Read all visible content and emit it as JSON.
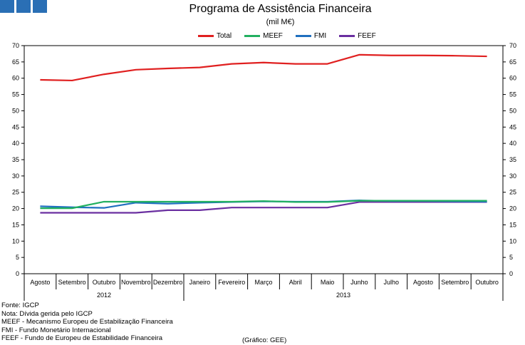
{
  "header": {
    "title": "Programa de Assistência Financeira",
    "subtitle": "(mil M€)"
  },
  "footer": {
    "notes": [
      "Fonte: IGCP",
      "Nota: Dívida gerida pelo IGCP",
      "MEEF - Mecanismo Europeu de Estabilização Financeira",
      "FMI - Fundo Monetário Internacional",
      "FEEF - Fundo de Europeu de Estabilidade Financeira"
    ],
    "credit": "(Gráfico: GEE)"
  },
  "chart_data": {
    "type": "line",
    "title": "Programa de Assistência Financeira",
    "subtitle": "(mil M€)",
    "categories": [
      "Agosto",
      "Setembro",
      "Outubro",
      "Novembro",
      "Dezembro",
      "Janeiro",
      "Fevereiro",
      "Março",
      "Abril",
      "Maio",
      "Junho",
      "Julho",
      "Agosto",
      "Setembro",
      "Outubro"
    ],
    "year_groups": [
      {
        "label": "2012",
        "start": 0,
        "end": 4
      },
      {
        "label": "2013",
        "start": 5,
        "end": 14
      }
    ],
    "ylim": [
      0,
      70
    ],
    "yticks": [
      0,
      5,
      10,
      15,
      20,
      25,
      30,
      35,
      40,
      45,
      50,
      55,
      60,
      65,
      70
    ],
    "y_axis_both_sides": true,
    "grid": false,
    "legend_position": "top",
    "series": [
      {
        "name": "Total",
        "color": "#e02020",
        "values": [
          59.5,
          59.3,
          61.2,
          62.6,
          63.0,
          63.3,
          64.4,
          64.8,
          64.4,
          64.4,
          67.2,
          67.0,
          67.0,
          66.9,
          66.7
        ]
      },
      {
        "name": "MEEF",
        "color": "#22b060",
        "values": [
          20.1,
          20.1,
          22.1,
          22.1,
          22.1,
          22.1,
          22.1,
          22.3,
          22.0,
          22.0,
          22.4,
          22.4,
          22.4,
          22.4,
          22.4
        ]
      },
      {
        "name": "FMI",
        "color": "#1f6fbf",
        "values": [
          20.7,
          20.4,
          20.2,
          21.8,
          21.5,
          21.8,
          22.0,
          22.2,
          22.1,
          22.1,
          22.5,
          22.3,
          22.3,
          22.2,
          22.1
        ]
      },
      {
        "name": "FEEF",
        "color": "#6a2fa0",
        "values": [
          18.7,
          18.7,
          18.7,
          18.7,
          19.5,
          19.5,
          20.3,
          20.3,
          20.3,
          20.3,
          22.0,
          22.0,
          22.0,
          22.0,
          22.0
        ]
      }
    ]
  }
}
